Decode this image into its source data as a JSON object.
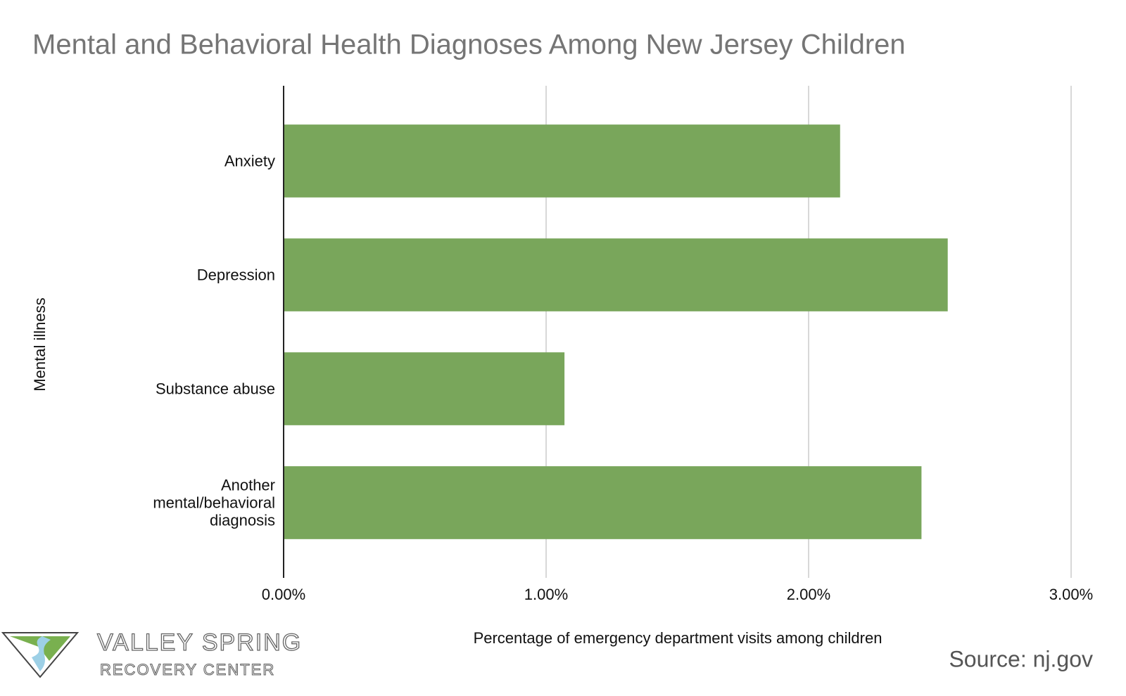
{
  "chart_data": {
    "type": "barh",
    "title": "Mental and Behavioral Health Diagnoses Among New Jersey Children",
    "categories": [
      "Anxiety",
      "Depression",
      "Substance abuse",
      "Another mental/behavioral diagnosis"
    ],
    "values": [
      2.12,
      2.53,
      1.07,
      2.43
    ],
    "color": "#79a65b",
    "xlim": [
      0,
      3
    ],
    "xticks": [
      {
        "value": 0,
        "label": "0.00%"
      },
      {
        "value": 1,
        "label": "1.00%"
      },
      {
        "value": 2,
        "label": "2.00%"
      },
      {
        "value": 3,
        "label": "3.00%"
      }
    ],
    "grid": true,
    "xlabel": "Percentage of emergency department visits among children",
    "ylabel": "Mental illness",
    "source": "Source: nj.gov",
    "logo_text": [
      "VALLEY SPRING",
      "RECOVERY CENTER"
    ]
  }
}
